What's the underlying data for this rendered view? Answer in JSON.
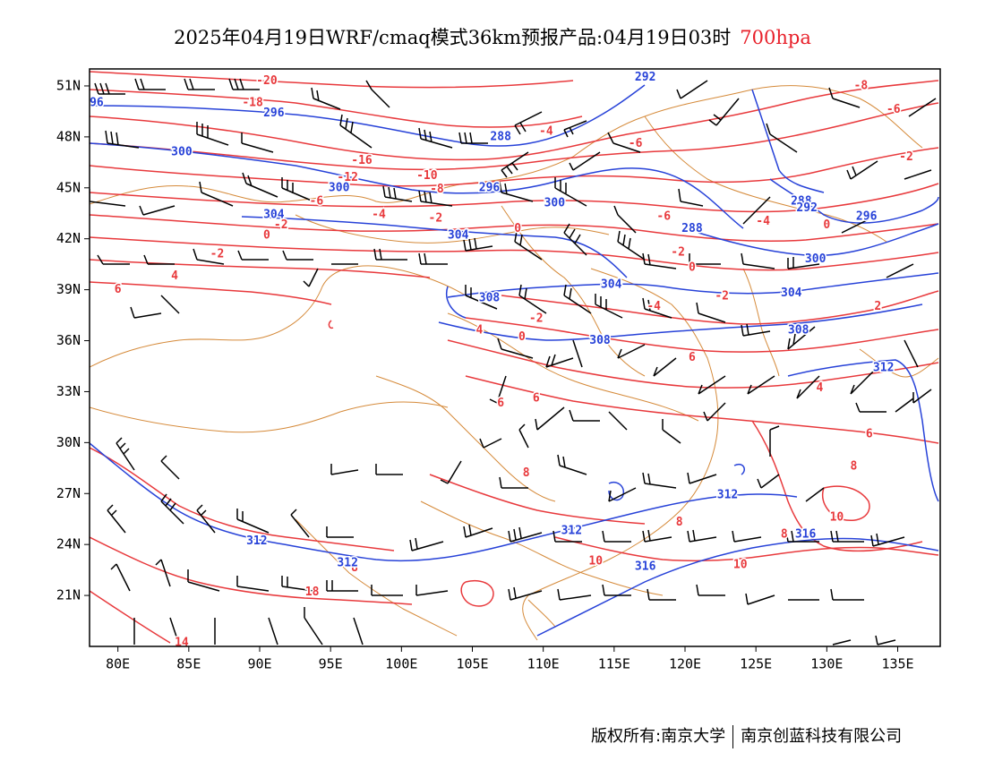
{
  "header": {
    "title": "2025年04月19日WRF/cmaq模式36km预报产品:04月19日03时",
    "level": "700hpa",
    "level_color": "#e8202a"
  },
  "axes": {
    "lon_range": [
      78,
      138
    ],
    "lat_range": [
      18,
      52
    ],
    "lat_labels": [
      "51N",
      "48N",
      "45N",
      "42N",
      "39N",
      "36N",
      "33N",
      "30N",
      "27N",
      "24N",
      "21N"
    ],
    "lat_values": [
      51,
      48,
      45,
      42,
      39,
      36,
      33,
      30,
      27,
      24,
      21
    ],
    "lon_labels": [
      "80E",
      "85E",
      "90E",
      "95E",
      "100E",
      "105E",
      "110E",
      "115E",
      "120E",
      "125E",
      "130E",
      "135E"
    ],
    "lon_values": [
      80,
      85,
      90,
      95,
      100,
      105,
      110,
      115,
      120,
      125,
      130,
      135
    ]
  },
  "colors": {
    "temperature_contour": "#e8393c",
    "height_contour": "#2742d8",
    "border": "#d58a3a",
    "wind_barb": "#000000"
  },
  "temperature_labels": [
    {
      "lon": 90.5,
      "lat": 51.3,
      "text": "-20"
    },
    {
      "lon": 89.5,
      "lat": 50.0,
      "text": "-18"
    },
    {
      "lon": 97.2,
      "lat": 46.6,
      "text": "-16"
    },
    {
      "lon": 96.2,
      "lat": 45.6,
      "text": "-12"
    },
    {
      "lon": 101.8,
      "lat": 45.7,
      "text": "-10"
    },
    {
      "lon": 102.5,
      "lat": 44.9,
      "text": "-8"
    },
    {
      "lon": 94.0,
      "lat": 44.2,
      "text": "-6"
    },
    {
      "lon": 98.4,
      "lat": 43.4,
      "text": "-4"
    },
    {
      "lon": 102.4,
      "lat": 43.2,
      "text": "-2"
    },
    {
      "lon": 91.5,
      "lat": 42.8,
      "text": "-2"
    },
    {
      "lon": 90.5,
      "lat": 42.2,
      "text": "0"
    },
    {
      "lon": 87.0,
      "lat": 41.1,
      "text": "-2"
    },
    {
      "lon": 84.0,
      "lat": 39.8,
      "text": "4"
    },
    {
      "lon": 80.0,
      "lat": 39.0,
      "text": "6"
    },
    {
      "lon": 108.2,
      "lat": 42.6,
      "text": "0"
    },
    {
      "lon": 110.2,
      "lat": 48.3,
      "text": "-4"
    },
    {
      "lon": 116.5,
      "lat": 47.6,
      "text": "-6"
    },
    {
      "lon": 132.4,
      "lat": 51.0,
      "text": "-8"
    },
    {
      "lon": 134.7,
      "lat": 49.6,
      "text": "-6"
    },
    {
      "lon": 135.6,
      "lat": 46.8,
      "text": "-2"
    },
    {
      "lon": 118.5,
      "lat": 43.3,
      "text": "-6"
    },
    {
      "lon": 125.5,
      "lat": 43.0,
      "text": "-4"
    },
    {
      "lon": 130.0,
      "lat": 42.8,
      "text": "0"
    },
    {
      "lon": 119.5,
      "lat": 41.2,
      "text": "-2"
    },
    {
      "lon": 120.5,
      "lat": 40.3,
      "text": "0"
    },
    {
      "lon": 122.6,
      "lat": 38.6,
      "text": "-2"
    },
    {
      "lon": 117.8,
      "lat": 38.0,
      "text": "-4"
    },
    {
      "lon": 105.5,
      "lat": 36.6,
      "text": "4"
    },
    {
      "lon": 109.5,
      "lat": 37.3,
      "text": "-2"
    },
    {
      "lon": 108.5,
      "lat": 36.2,
      "text": "0"
    },
    {
      "lon": 120.5,
      "lat": 35.0,
      "text": "6"
    },
    {
      "lon": 129.5,
      "lat": 33.2,
      "text": "4"
    },
    {
      "lon": 133.6,
      "lat": 38.0,
      "text": "2"
    },
    {
      "lon": 107.0,
      "lat": 32.3,
      "text": "6"
    },
    {
      "lon": 109.5,
      "lat": 32.6,
      "text": "6"
    },
    {
      "lon": 108.8,
      "lat": 28.2,
      "text": "8"
    },
    {
      "lon": 133.0,
      "lat": 30.5,
      "text": "6"
    },
    {
      "lon": 131.9,
      "lat": 28.6,
      "text": "8"
    },
    {
      "lon": 130.7,
      "lat": 25.6,
      "text": "10"
    },
    {
      "lon": 119.6,
      "lat": 25.3,
      "text": "8"
    },
    {
      "lon": 96.7,
      "lat": 22.6,
      "text": "8"
    },
    {
      "lon": 93.7,
      "lat": 21.2,
      "text": "18"
    },
    {
      "lon": 113.7,
      "lat": 23.0,
      "text": "10"
    },
    {
      "lon": 123.9,
      "lat": 22.8,
      "text": "10"
    },
    {
      "lon": 127.0,
      "lat": 24.6,
      "text": "8"
    },
    {
      "lon": 84.5,
      "lat": 18.2,
      "text": "14"
    }
  ],
  "height_labels": [
    {
      "lon": 78.5,
      "lat": 50.0,
      "text": "96"
    },
    {
      "lon": 91.0,
      "lat": 49.4,
      "text": "296"
    },
    {
      "lon": 84.5,
      "lat": 47.1,
      "text": "300"
    },
    {
      "lon": 107.0,
      "lat": 48.0,
      "text": "288"
    },
    {
      "lon": 117.2,
      "lat": 51.5,
      "text": "292"
    },
    {
      "lon": 95.6,
      "lat": 45.0,
      "text": "300"
    },
    {
      "lon": 106.2,
      "lat": 45.0,
      "text": "296"
    },
    {
      "lon": 110.8,
      "lat": 44.1,
      "text": "300"
    },
    {
      "lon": 91.0,
      "lat": 43.4,
      "text": "304"
    },
    {
      "lon": 104.0,
      "lat": 42.2,
      "text": "304"
    },
    {
      "lon": 128.2,
      "lat": 44.2,
      "text": "288"
    },
    {
      "lon": 128.6,
      "lat": 43.8,
      "text": "292"
    },
    {
      "lon": 132.8,
      "lat": 43.3,
      "text": "296"
    },
    {
      "lon": 120.5,
      "lat": 42.6,
      "text": "288"
    },
    {
      "lon": 129.2,
      "lat": 40.8,
      "text": "300"
    },
    {
      "lon": 114.8,
      "lat": 39.3,
      "text": "304"
    },
    {
      "lon": 127.5,
      "lat": 38.8,
      "text": "304"
    },
    {
      "lon": 106.2,
      "lat": 38.5,
      "text": "308"
    },
    {
      "lon": 128.0,
      "lat": 36.6,
      "text": "308"
    },
    {
      "lon": 114.0,
      "lat": 36.0,
      "text": "308"
    },
    {
      "lon": 134.0,
      "lat": 34.4,
      "text": "312"
    },
    {
      "lon": 112.0,
      "lat": 24.8,
      "text": "312"
    },
    {
      "lon": 123.0,
      "lat": 26.9,
      "text": "312"
    },
    {
      "lon": 89.8,
      "lat": 24.2,
      "text": "312"
    },
    {
      "lon": 96.2,
      "lat": 22.9,
      "text": "312"
    },
    {
      "lon": 117.2,
      "lat": 22.7,
      "text": "316"
    },
    {
      "lon": 128.5,
      "lat": 24.6,
      "text": "316"
    }
  ],
  "footer": {
    "copyright": "版权所有:南京大学",
    "company": "南京创蓝科技有限公司"
  }
}
